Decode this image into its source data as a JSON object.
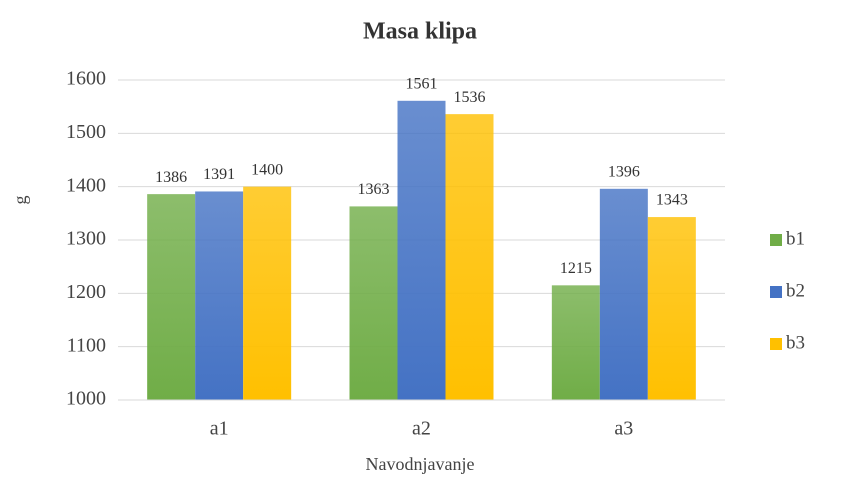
{
  "chart_data": {
    "type": "bar",
    "title": "Masa klipa",
    "x_label": "Navodnjavanje",
    "y_label": "g",
    "categories": [
      "a1",
      "a2",
      "a3"
    ],
    "series": [
      {
        "name": "b1",
        "color": "#70ad47",
        "values": [
          1386,
          1363,
          1215
        ]
      },
      {
        "name": "b2",
        "color": "#4472c4",
        "values": [
          1391,
          1561,
          1396
        ]
      },
      {
        "name": "b3",
        "color": "#ffc000",
        "values": [
          1400,
          1536,
          1343
        ]
      }
    ],
    "ylim": [
      1000,
      1600
    ],
    "yticks": [
      1000,
      1100,
      1200,
      1300,
      1400,
      1500,
      1600
    ],
    "grid": true,
    "legend": "right"
  }
}
